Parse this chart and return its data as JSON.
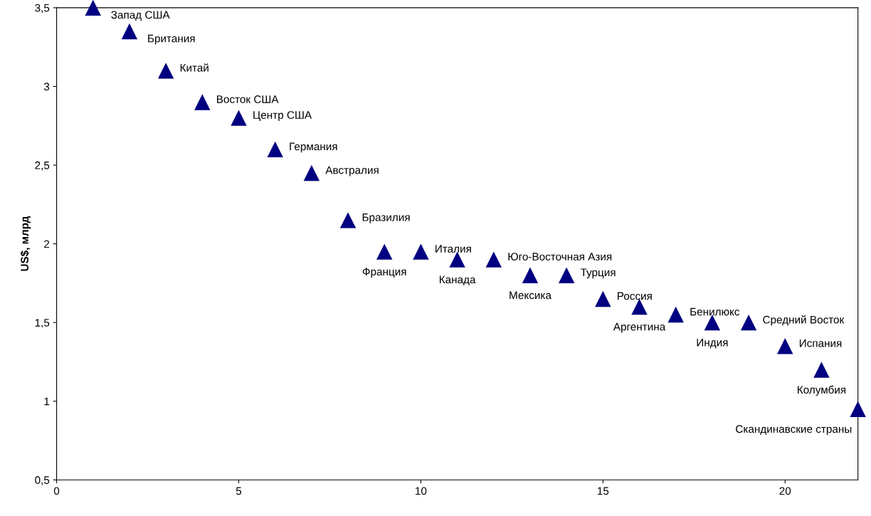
{
  "chart_data": {
    "type": "scatter",
    "ylabel": "US$, млрд",
    "x": [
      1,
      2,
      3,
      4,
      5,
      6,
      7,
      8,
      9,
      10,
      11,
      12,
      13,
      14,
      15,
      16,
      17,
      18,
      19,
      20,
      21,
      22
    ],
    "series": [
      {
        "color": "#000080",
        "values": [
          3.5,
          3.35,
          3.1,
          2.9,
          2.8,
          2.6,
          2.45,
          2.15,
          1.95,
          1.95,
          1.9,
          1.9,
          1.8,
          1.8,
          1.65,
          1.6,
          1.55,
          1.5,
          1.5,
          1.35,
          1.2,
          0.95
        ]
      }
    ],
    "marker": "triangle",
    "xlim": [
      0,
      22
    ],
    "ylim": [
      0.5,
      3.5
    ],
    "xticks": [
      0,
      5,
      10,
      15,
      20
    ],
    "yticks": [
      {
        "value": 0.5,
        "label": "0,5"
      },
      {
        "value": 1,
        "label": "1"
      },
      {
        "value": 1.5,
        "label": "1,5"
      },
      {
        "value": 2,
        "label": "2"
      },
      {
        "value": 2.5,
        "label": "2,5"
      },
      {
        "value": 3,
        "label": "3"
      },
      {
        "value": 3.5,
        "label": "3,5"
      }
    ],
    "grid": false,
    "annotations": [
      {
        "text": "Запад США",
        "x": 1,
        "y": 3.5
      },
      {
        "text": "Британия",
        "x": 2,
        "y": 3.35
      },
      {
        "text": "Китай",
        "x": 3,
        "y": 3.1
      },
      {
        "text": "Восток США",
        "x": 4,
        "y": 2.9
      },
      {
        "text": "Центр США",
        "x": 5,
        "y": 2.8
      },
      {
        "text": "Германия",
        "x": 6,
        "y": 2.6
      },
      {
        "text": "Австралия",
        "x": 7,
        "y": 2.45
      },
      {
        "text": "Бразилия",
        "x": 8,
        "y": 2.15
      },
      {
        "text": "Франция",
        "x": 9,
        "y": 1.95
      },
      {
        "text": "Италия",
        "x": 10,
        "y": 1.95
      },
      {
        "text": "Канада",
        "x": 11,
        "y": 1.9
      },
      {
        "text": "Юго-Восточная Азия",
        "x": 12,
        "y": 1.9
      },
      {
        "text": "Мексика",
        "x": 13,
        "y": 1.8
      },
      {
        "text": "Турция",
        "x": 14,
        "y": 1.8
      },
      {
        "text": "Россия",
        "x": 15,
        "y": 1.65
      },
      {
        "text": "Аргентина",
        "x": 16,
        "y": 1.6
      },
      {
        "text": "Бенилюкс",
        "x": 17,
        "y": 1.55
      },
      {
        "text": "Индия",
        "x": 18,
        "y": 1.5
      },
      {
        "text": "Средний Восток",
        "x": 19,
        "y": 1.5
      },
      {
        "text": "Испания",
        "x": 20,
        "y": 1.35
      },
      {
        "text": "Колумбия",
        "x": 21,
        "y": 1.2
      },
      {
        "text": "Скандинавские страны",
        "x": 22,
        "y": 0.95
      }
    ]
  }
}
